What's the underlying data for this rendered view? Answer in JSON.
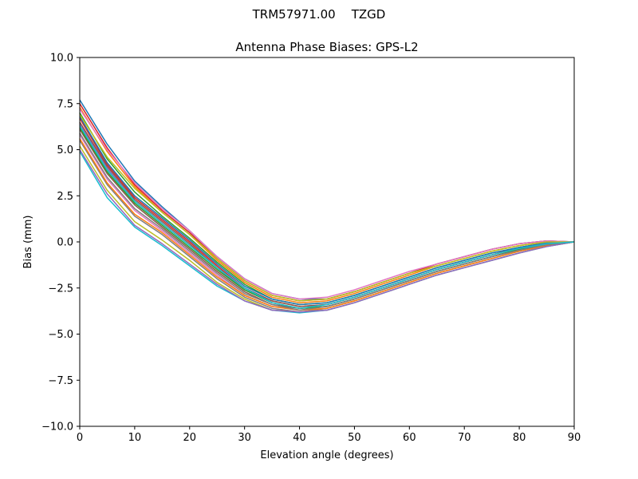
{
  "figure": {
    "suptitle_antenna": "TRM57971.00",
    "suptitle_radome": "TZGD"
  },
  "chart_data": {
    "type": "line",
    "title": "Antenna Phase Biases: GPS-L2",
    "xlabel": "Elevation angle (degrees)",
    "ylabel": "Bias (mm)",
    "xlim": [
      0,
      90
    ],
    "ylim": [
      -10,
      10
    ],
    "x_ticks": [
      "0",
      "10",
      "20",
      "30",
      "40",
      "50",
      "60",
      "70",
      "80",
      "90"
    ],
    "y_ticks": [
      "−10.0",
      "−7.5",
      "−5.0",
      "−2.5",
      "0.0",
      "2.5",
      "5.0",
      "7.5",
      "10.0"
    ],
    "grid": false,
    "legend": "none",
    "x": [
      0,
      5,
      10,
      15,
      20,
      25,
      30,
      35,
      40,
      45,
      50,
      55,
      60,
      65,
      70,
      75,
      80,
      85,
      90
    ],
    "series": [
      {
        "color": "#1f77b4",
        "values": [
          7.7,
          5.3,
          3.3,
          1.9,
          0.6,
          -0.8,
          -2.0,
          -2.8,
          -3.1,
          -3.1,
          -2.7,
          -2.2,
          -1.7,
          -1.2,
          -0.8,
          -0.4,
          -0.1,
          0.05,
          0.0
        ]
      },
      {
        "color": "#ff7f0e",
        "values": [
          7.3,
          4.9,
          3.0,
          1.6,
          0.4,
          -1.0,
          -2.2,
          -3.0,
          -3.3,
          -3.2,
          -2.8,
          -2.3,
          -1.8,
          -1.3,
          -0.9,
          -0.5,
          -0.2,
          0.0,
          0.0
        ]
      },
      {
        "color": "#2ca02c",
        "values": [
          7.0,
          4.5,
          2.7,
          1.4,
          0.2,
          -1.1,
          -2.3,
          -3.1,
          -3.4,
          -3.3,
          -2.9,
          -2.4,
          -1.9,
          -1.4,
          -1.0,
          -0.6,
          -0.3,
          -0.05,
          0.0
        ]
      },
      {
        "color": "#d62728",
        "values": [
          6.7,
          4.2,
          2.4,
          1.2,
          0.0,
          -1.3,
          -2.5,
          -3.2,
          -3.5,
          -3.4,
          -3.0,
          -2.5,
          -2.0,
          -1.5,
          -1.1,
          -0.7,
          -0.3,
          -0.1,
          0.0
        ]
      },
      {
        "color": "#9467bd",
        "values": [
          6.4,
          4.0,
          2.2,
          1.0,
          -0.2,
          -1.4,
          -2.6,
          -3.3,
          -3.6,
          -3.5,
          -3.1,
          -2.6,
          -2.1,
          -1.6,
          -1.2,
          -0.8,
          -0.4,
          -0.1,
          0.0
        ]
      },
      {
        "color": "#8c564b",
        "values": [
          6.1,
          3.7,
          2.0,
          0.8,
          -0.4,
          -1.6,
          -2.7,
          -3.4,
          -3.6,
          -3.5,
          -3.1,
          -2.6,
          -2.1,
          -1.6,
          -1.2,
          -0.8,
          -0.4,
          -0.15,
          0.0
        ]
      },
      {
        "color": "#e377c2",
        "values": [
          5.8,
          3.4,
          1.7,
          0.6,
          -0.6,
          -1.8,
          -2.9,
          -3.5,
          -3.7,
          -3.6,
          -3.2,
          -2.7,
          -2.2,
          -1.7,
          -1.3,
          -0.9,
          -0.5,
          -0.2,
          0.0
        ]
      },
      {
        "color": "#7f7f7f",
        "values": [
          5.5,
          3.1,
          1.4,
          0.4,
          -0.8,
          -2.0,
          -3.0,
          -3.6,
          -3.8,
          -3.6,
          -3.2,
          -2.7,
          -2.2,
          -1.7,
          -1.3,
          -0.9,
          -0.5,
          -0.2,
          0.0
        ]
      },
      {
        "color": "#bcbd22",
        "values": [
          5.2,
          2.8,
          1.1,
          0.1,
          -1.0,
          -2.2,
          -3.1,
          -3.7,
          -3.8,
          -3.7,
          -3.3,
          -2.8,
          -2.3,
          -1.8,
          -1.4,
          -1.0,
          -0.6,
          -0.25,
          0.0
        ]
      },
      {
        "color": "#17becf",
        "values": [
          4.9,
          2.4,
          0.8,
          -0.2,
          -1.3,
          -2.4,
          -3.2,
          -3.7,
          -3.85,
          -3.7,
          -3.3,
          -2.8,
          -2.3,
          -1.8,
          -1.4,
          -1.0,
          -0.6,
          -0.25,
          0.0
        ]
      },
      {
        "color": "#1f77b4",
        "values": [
          6.8,
          4.3,
          2.5,
          1.3,
          0.1,
          -1.2,
          -2.4,
          -3.1,
          -3.4,
          -3.3,
          -2.9,
          -2.4,
          -1.9,
          -1.4,
          -1.0,
          -0.6,
          -0.3,
          -0.05,
          0.0
        ]
      },
      {
        "color": "#ff7f0e",
        "values": [
          5.6,
          3.2,
          1.5,
          0.5,
          -0.7,
          -1.9,
          -2.9,
          -3.5,
          -3.7,
          -3.6,
          -3.2,
          -2.7,
          -2.2,
          -1.7,
          -1.3,
          -0.9,
          -0.5,
          -0.2,
          0.0
        ]
      },
      {
        "color": "#2ca02c",
        "values": [
          6.2,
          3.8,
          2.1,
          0.9,
          -0.3,
          -1.5,
          -2.6,
          -3.3,
          -3.6,
          -3.5,
          -3.1,
          -2.6,
          -2.1,
          -1.6,
          -1.2,
          -0.8,
          -0.4,
          -0.15,
          0.0
        ]
      },
      {
        "color": "#d62728",
        "values": [
          7.5,
          5.1,
          3.1,
          1.7,
          0.5,
          -0.9,
          -2.1,
          -2.9,
          -3.2,
          -3.1,
          -2.7,
          -2.2,
          -1.7,
          -1.2,
          -0.8,
          -0.4,
          -0.1,
          0.05,
          0.0
        ]
      },
      {
        "color": "#9467bd",
        "values": [
          5.0,
          2.6,
          0.9,
          -0.1,
          -1.2,
          -2.3,
          -3.2,
          -3.7,
          -3.8,
          -3.7,
          -3.3,
          -2.8,
          -2.3,
          -1.8,
          -1.4,
          -1.0,
          -0.6,
          -0.25,
          0.0
        ]
      },
      {
        "color": "#8c564b",
        "values": [
          6.5,
          4.1,
          2.3,
          1.1,
          -0.1,
          -1.4,
          -2.5,
          -3.2,
          -3.5,
          -3.4,
          -3.0,
          -2.5,
          -2.0,
          -1.5,
          -1.1,
          -0.7,
          -0.35,
          -0.1,
          0.0
        ]
      },
      {
        "color": "#e377c2",
        "values": [
          7.2,
          5.0,
          3.2,
          1.8,
          0.6,
          -0.8,
          -2.0,
          -2.8,
          -3.1,
          -3.0,
          -2.6,
          -2.1,
          -1.6,
          -1.2,
          -0.8,
          -0.4,
          -0.1,
          0.05,
          0.0
        ]
      },
      {
        "color": "#7f7f7f",
        "values": [
          5.9,
          3.5,
          1.8,
          0.7,
          -0.5,
          -1.7,
          -2.8,
          -3.4,
          -3.7,
          -3.5,
          -3.1,
          -2.6,
          -2.1,
          -1.6,
          -1.2,
          -0.8,
          -0.45,
          -0.15,
          0.0
        ]
      },
      {
        "color": "#bcbd22",
        "values": [
          6.9,
          4.6,
          2.9,
          1.6,
          0.4,
          -0.9,
          -2.1,
          -2.9,
          -3.2,
          -3.1,
          -2.7,
          -2.2,
          -1.7,
          -1.3,
          -0.9,
          -0.5,
          -0.2,
          0.0,
          0.0
        ]
      },
      {
        "color": "#17becf",
        "values": [
          6.3,
          3.9,
          2.2,
          1.0,
          -0.2,
          -1.4,
          -2.5,
          -3.3,
          -3.6,
          -3.4,
          -3.0,
          -2.5,
          -2.0,
          -1.5,
          -1.1,
          -0.7,
          -0.35,
          -0.1,
          0.0
        ]
      }
    ]
  }
}
